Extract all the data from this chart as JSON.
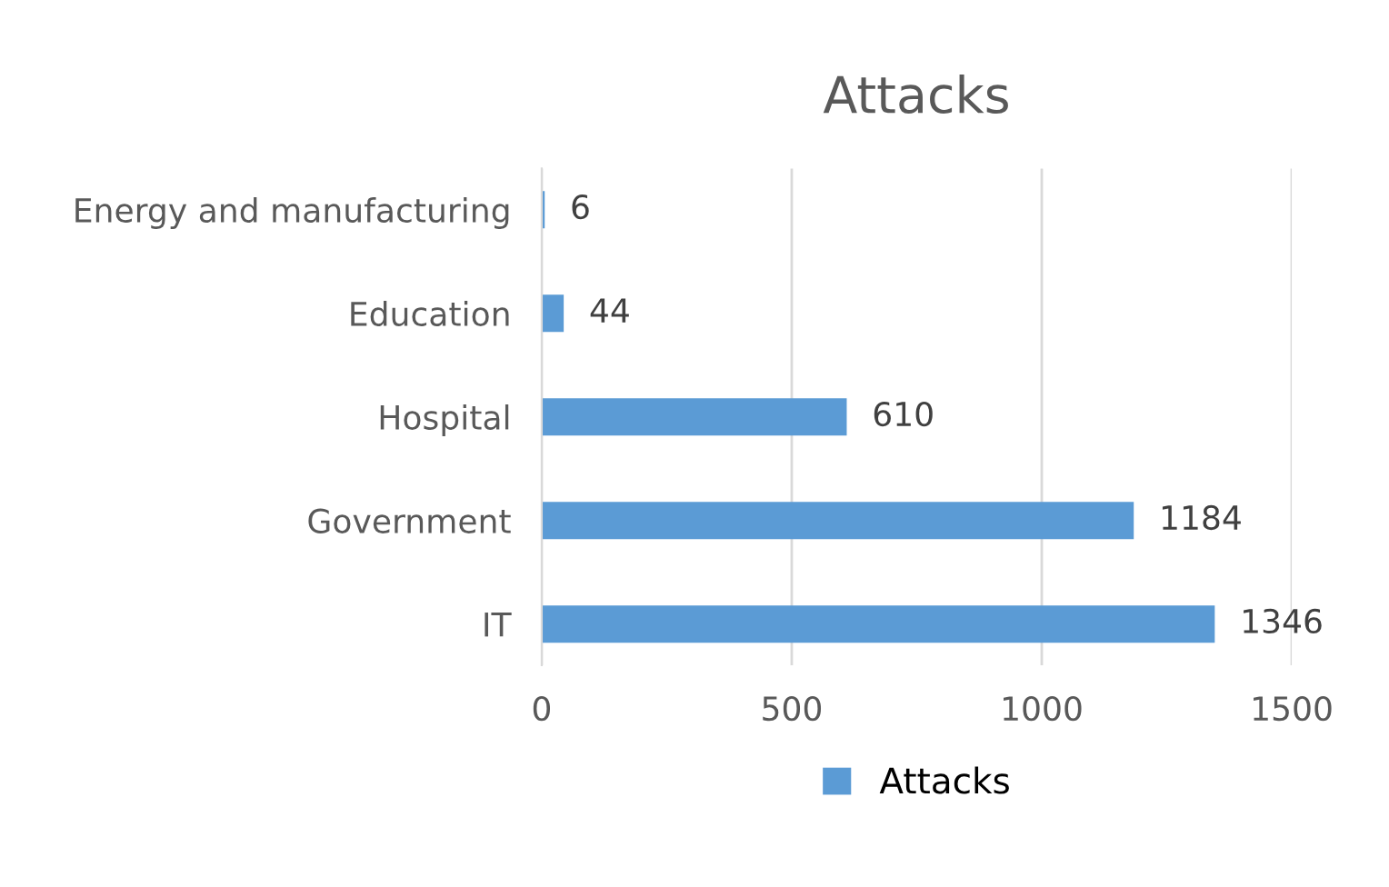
{
  "chart_data": {
    "type": "bar",
    "orientation": "horizontal",
    "title": "Attacks",
    "categories": [
      "Energy and manufacturing",
      "Education",
      "Hospital",
      "Government",
      "IT"
    ],
    "series": [
      {
        "name": "Attacks",
        "color": "#5b9bd5",
        "values": [
          6,
          44,
          610,
          1184,
          1346
        ]
      }
    ],
    "xlim": [
      0,
      1500
    ],
    "xticks": [
      0,
      500,
      1000,
      1500
    ],
    "grid": "x",
    "legend": "bottom",
    "data_labels": true
  }
}
